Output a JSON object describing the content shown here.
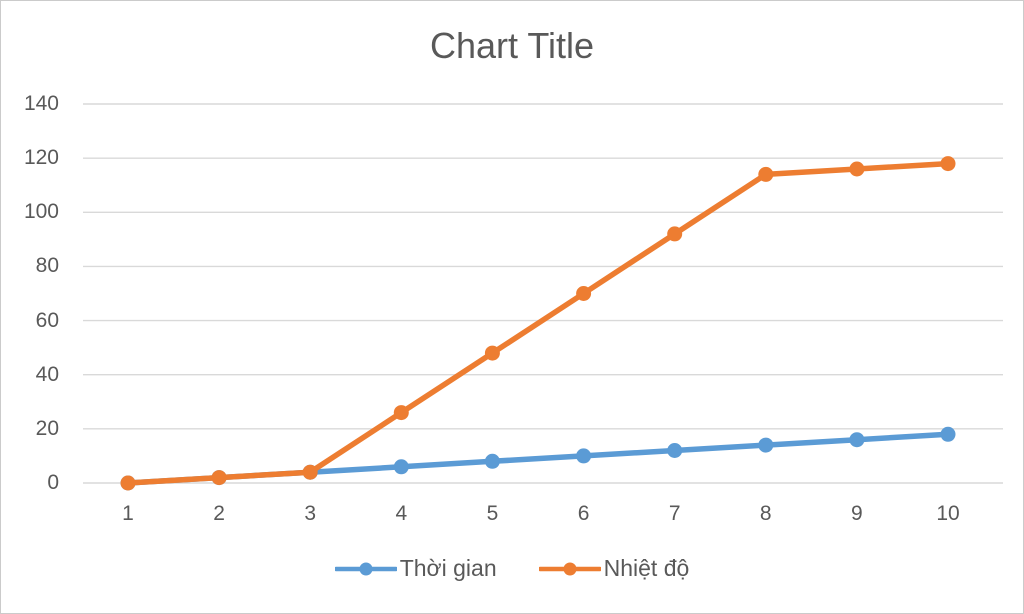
{
  "chart_data": {
    "type": "line",
    "title": "Chart Title",
    "categories": [
      "1",
      "2",
      "3",
      "4",
      "5",
      "6",
      "7",
      "8",
      "9",
      "10"
    ],
    "series": [
      {
        "name": "Thời gian",
        "color": "#5B9BD5",
        "values": [
          0,
          2,
          4,
          6,
          8,
          10,
          12,
          14,
          16,
          18
        ]
      },
      {
        "name": "Nhiệt độ",
        "color": "#ED7D31",
        "values": [
          0,
          2,
          4,
          26,
          48,
          70,
          92,
          114,
          116,
          118
        ]
      }
    ],
    "xlabel": "",
    "ylabel": "",
    "ylim": [
      0,
      140
    ],
    "yticks": [
      0,
      20,
      40,
      60,
      80,
      100,
      120,
      140
    ],
    "grid": "horizontal",
    "legend_position": "bottom",
    "marker": "circle",
    "colors": {
      "title_text": "#595959",
      "axis_text": "#595959",
      "gridline": "#D9D9D9",
      "background": "#FFFFFF",
      "frame_border": "#CBCBCB"
    }
  }
}
